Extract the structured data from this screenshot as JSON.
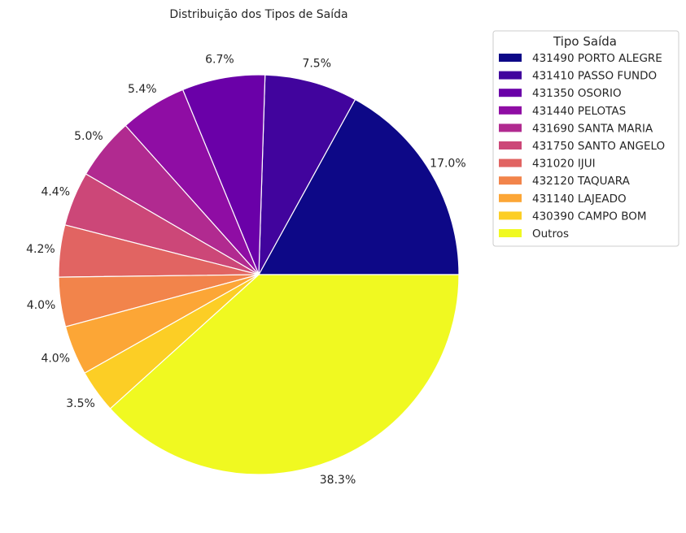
{
  "chart_data": {
    "type": "pie",
    "title": "Distribuição dos Tipos de Saída",
    "legend_title": "Tipo Saída",
    "legend_position": "top-right",
    "start_angle_deg": 0,
    "direction": "counterclockwise",
    "slices": [
      {
        "label": "431490 PORTO ALEGRE",
        "value": 17.0,
        "pct_label": "17.0%",
        "color": "#0d0887"
      },
      {
        "label": "431410 PASSO FUNDO",
        "value": 7.5,
        "pct_label": "7.5%",
        "color": "#41049d"
      },
      {
        "label": "431350 OSORIO",
        "value": 6.7,
        "pct_label": "6.7%",
        "color": "#6a00a8"
      },
      {
        "label": "431440 PELOTAS",
        "value": 5.4,
        "pct_label": "5.4%",
        "color": "#8f0da4"
      },
      {
        "label": "431690 SANTA MARIA",
        "value": 5.0,
        "pct_label": "5.0%",
        "color": "#b12a90"
      },
      {
        "label": "431750 SANTO ANGELO",
        "value": 4.4,
        "pct_label": "4.4%",
        "color": "#cc4778"
      },
      {
        "label": "431020 IJUI",
        "value": 4.2,
        "pct_label": "4.2%",
        "color": "#e16462"
      },
      {
        "label": "432120 TAQUARA",
        "value": 4.0,
        "pct_label": "4.0%",
        "color": "#f2844b"
      },
      {
        "label": "431140 LAJEADO",
        "value": 4.0,
        "pct_label": "4.0%",
        "color": "#fca636"
      },
      {
        "label": "430390 CAMPO BOM",
        "value": 3.5,
        "pct_label": "3.5%",
        "color": "#fcce25"
      },
      {
        "label": "Outros",
        "value": 38.3,
        "pct_label": "38.3%",
        "color": "#f0f921"
      }
    ]
  }
}
